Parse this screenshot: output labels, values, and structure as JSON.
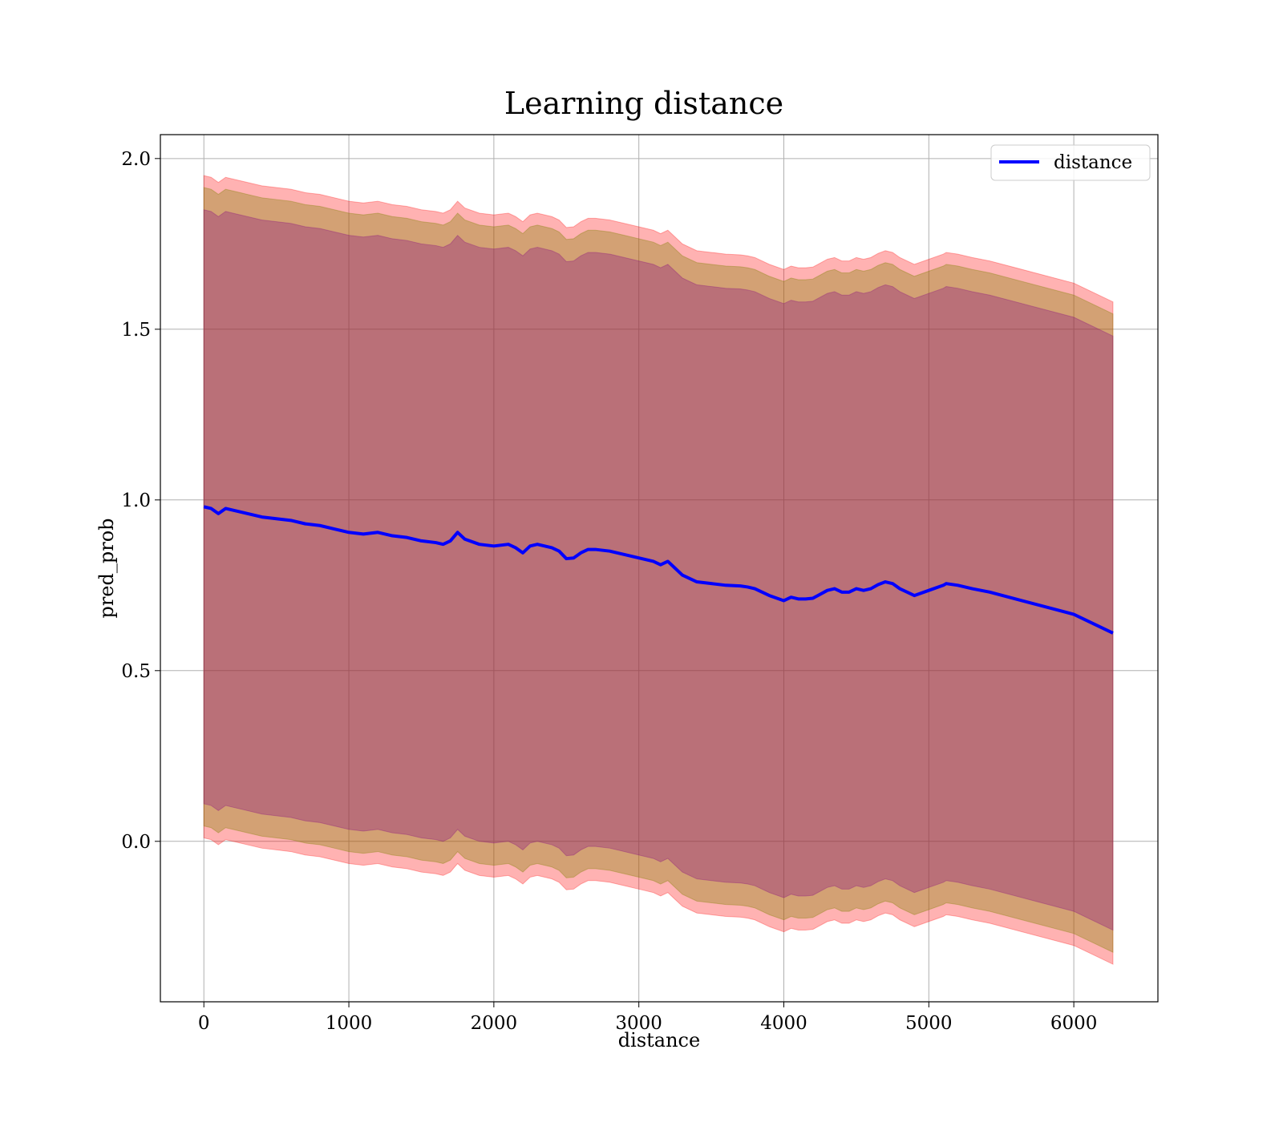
{
  "chart_data": {
    "type": "line",
    "title": "Learning distance",
    "xlabel": "distance",
    "ylabel": "pred_prob",
    "xlim": [
      -300,
      6580
    ],
    "ylim": [
      -0.47,
      2.07
    ],
    "grid": true,
    "legend_position": "top-right",
    "x_ticks": [
      {
        "value": 0,
        "label": "0"
      },
      {
        "value": 1000,
        "label": "1000"
      },
      {
        "value": 2000,
        "label": "2000"
      },
      {
        "value": 3000,
        "label": "3000"
      },
      {
        "value": 4000,
        "label": "4000"
      },
      {
        "value": 5000,
        "label": "5000"
      },
      {
        "value": 6000,
        "label": "6000"
      }
    ],
    "y_ticks": [
      {
        "value": 0.0,
        "label": "0.0"
      },
      {
        "value": 0.5,
        "label": "0.5"
      },
      {
        "value": 1.0,
        "label": "1.0"
      },
      {
        "value": 1.5,
        "label": "1.5"
      },
      {
        "value": 2.0,
        "label": "2.0"
      }
    ],
    "series": [
      {
        "name": "distance",
        "color": "#0000ff",
        "x": [
          0,
          50,
          100,
          150,
          200,
          250,
          300,
          400,
          500,
          600,
          700,
          800,
          900,
          1000,
          1100,
          1200,
          1300,
          1400,
          1500,
          1600,
          1650,
          1700,
          1750,
          1800,
          1900,
          2000,
          2100,
          2150,
          2200,
          2250,
          2300,
          2400,
          2450,
          2500,
          2550,
          2600,
          2650,
          2700,
          2800,
          2900,
          3000,
          3050,
          3100,
          3150,
          3200,
          3250,
          3300,
          3400,
          3500,
          3600,
          3700,
          3750,
          3800,
          3900,
          4000,
          4050,
          4100,
          4150,
          4200,
          4300,
          4350,
          4400,
          4450,
          4500,
          4550,
          4600,
          4650,
          4700,
          4750,
          4800,
          4900,
          5000,
          5100,
          5120,
          5200,
          5300,
          5420,
          6000,
          6270
        ],
        "values": [
          0.98,
          0.975,
          0.96,
          0.975,
          0.97,
          0.965,
          0.96,
          0.95,
          0.945,
          0.94,
          0.93,
          0.925,
          0.915,
          0.905,
          0.9,
          0.905,
          0.895,
          0.89,
          0.88,
          0.875,
          0.87,
          0.88,
          0.905,
          0.885,
          0.87,
          0.865,
          0.87,
          0.86,
          0.845,
          0.865,
          0.87,
          0.86,
          0.85,
          0.828,
          0.83,
          0.845,
          0.855,
          0.855,
          0.85,
          0.84,
          0.83,
          0.825,
          0.82,
          0.81,
          0.82,
          0.8,
          0.78,
          0.76,
          0.755,
          0.75,
          0.748,
          0.745,
          0.74,
          0.72,
          0.705,
          0.715,
          0.71,
          0.71,
          0.712,
          0.735,
          0.74,
          0.73,
          0.73,
          0.74,
          0.735,
          0.74,
          0.752,
          0.76,
          0.755,
          0.74,
          0.72,
          0.735,
          0.75,
          0.755,
          0.75,
          0.74,
          0.73,
          0.665,
          0.61
        ],
        "bands": [
          {
            "color": "#ff0000",
            "opacity": 0.3,
            "half_width": 0.97
          },
          {
            "color": "#808000",
            "opacity": 0.35,
            "half_width": 0.935
          },
          {
            "color": "#800080",
            "opacity": 0.3,
            "half_width": 0.87
          }
        ]
      }
    ]
  }
}
